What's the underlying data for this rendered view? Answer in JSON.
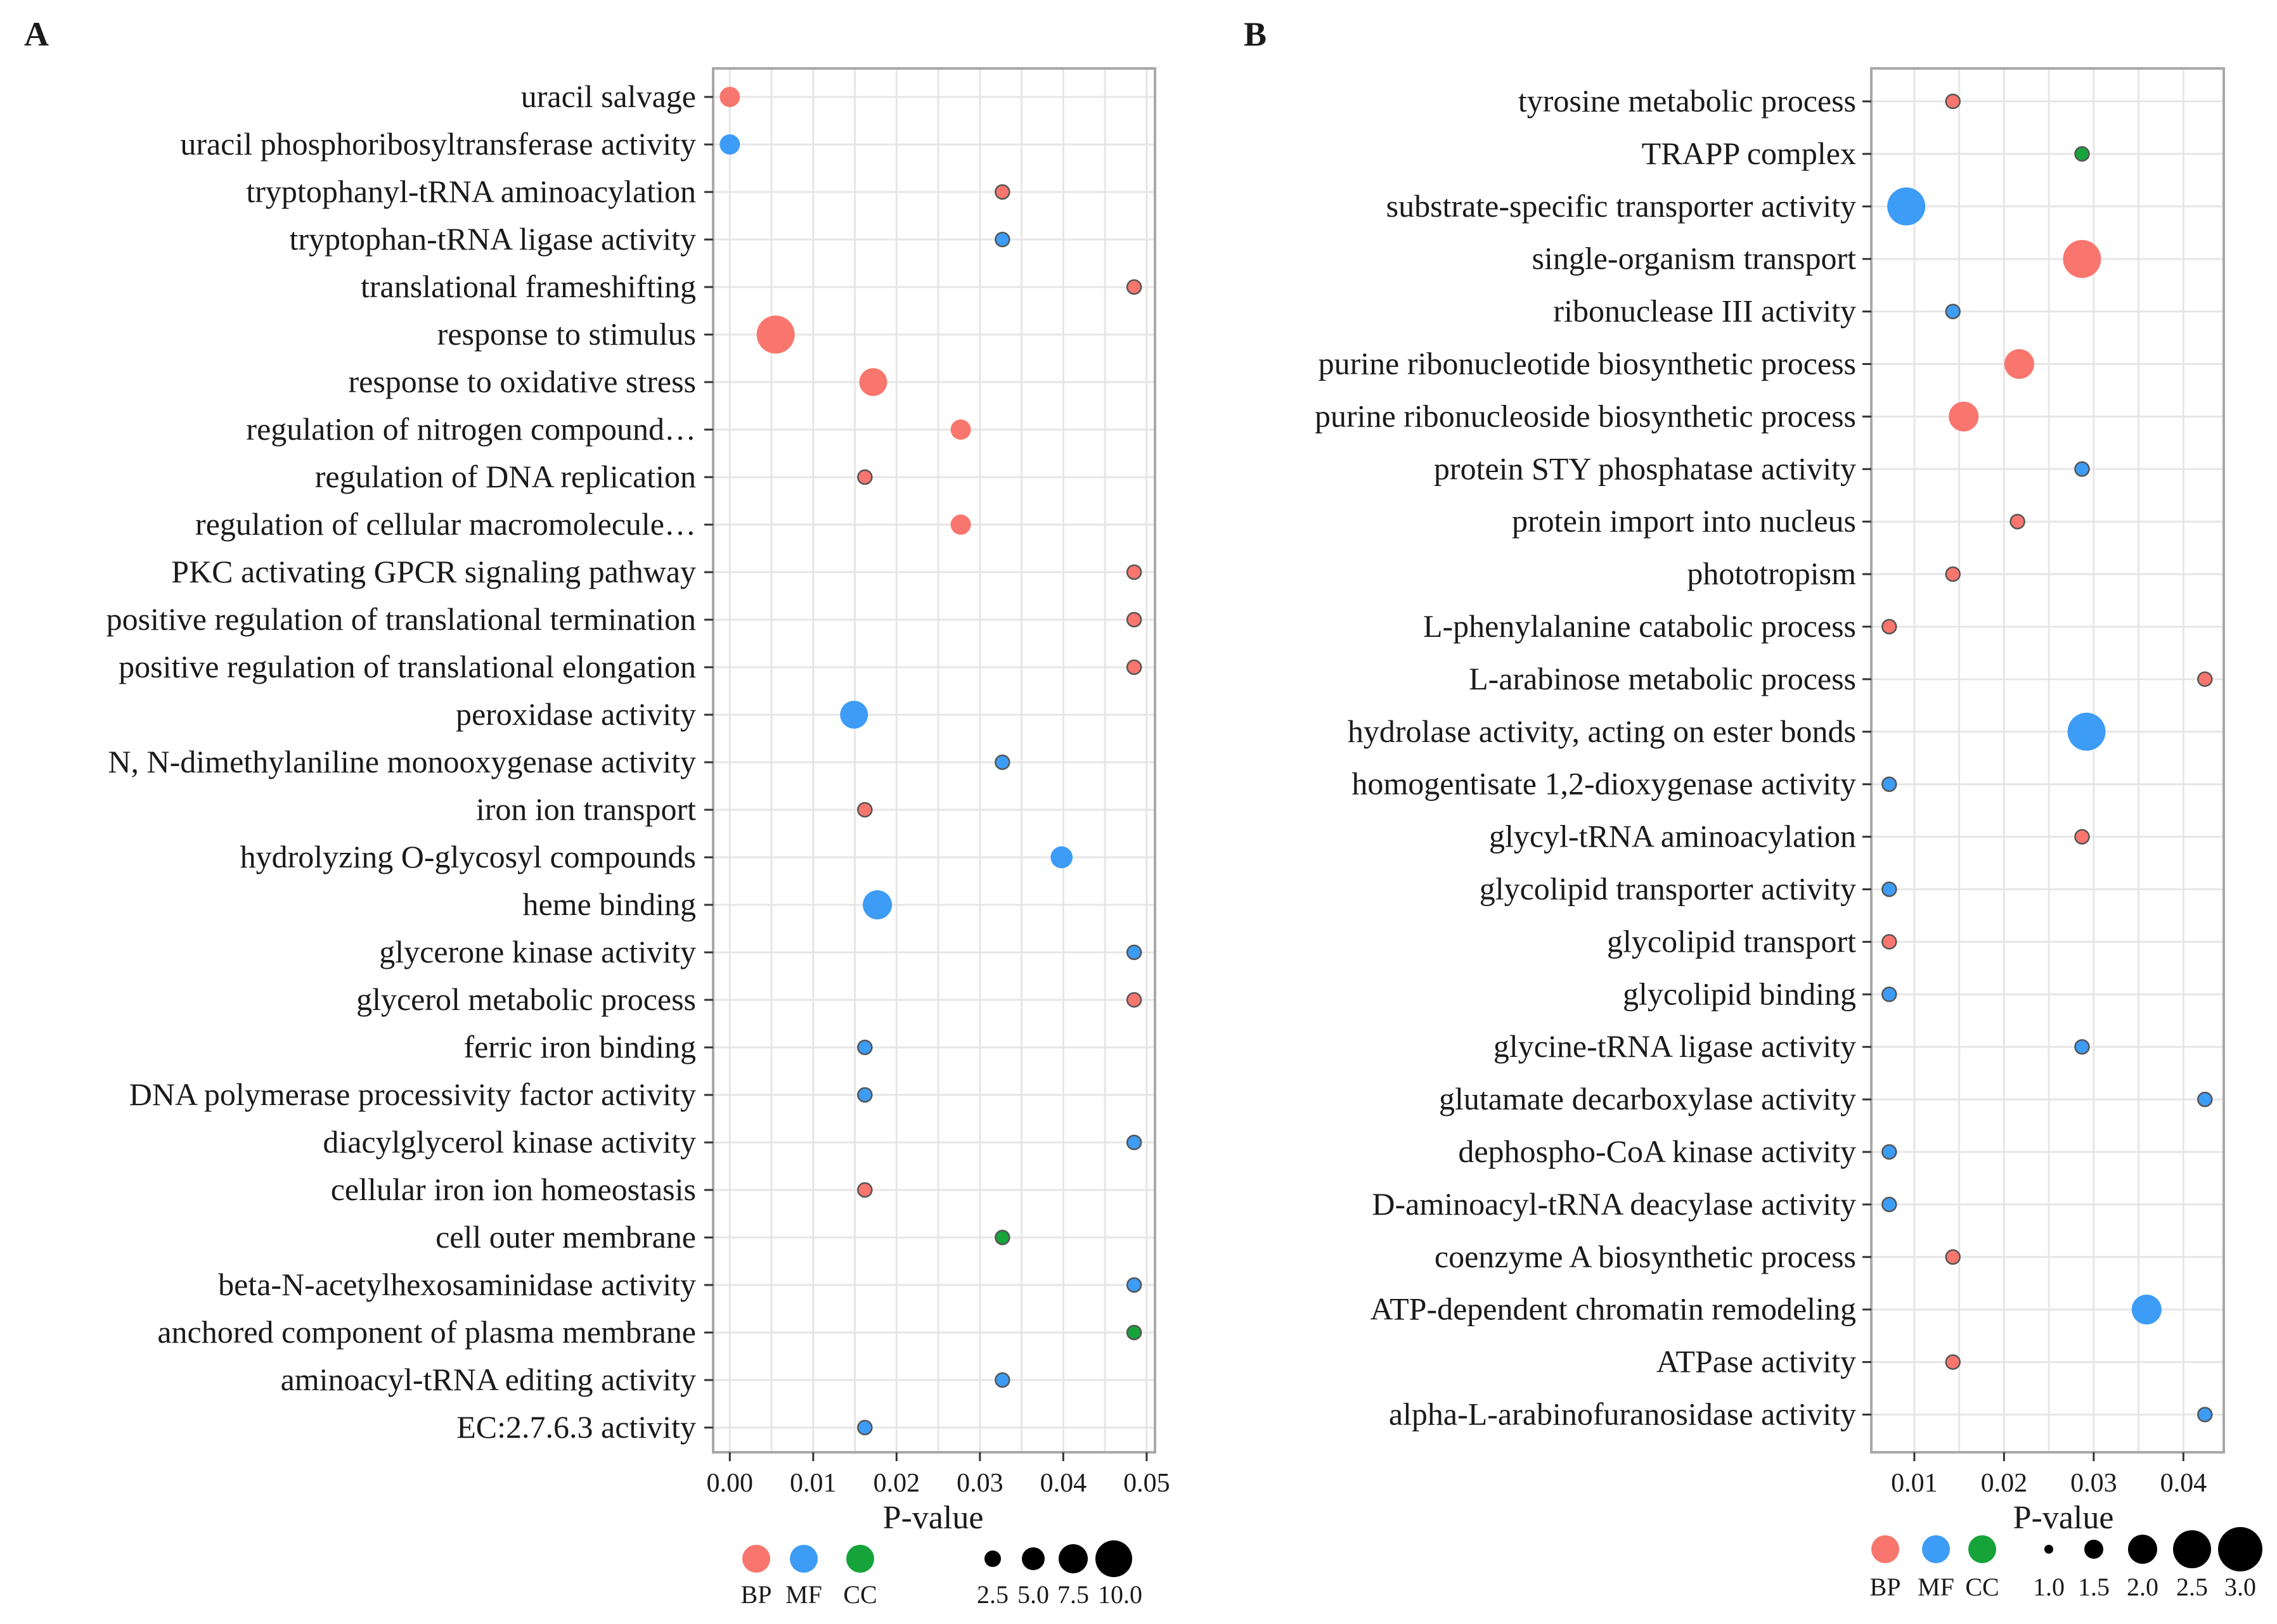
{
  "colors": {
    "BP": "#f8766d",
    "MF": "#3d9cf5",
    "CC": "#16a33a",
    "grid": "#e6e6e6",
    "frame": "#a8a8a8",
    "axis_text": "#333333"
  },
  "chart_data": [
    {
      "panel_label": "A",
      "type": "scatter",
      "xlabel": "P-value",
      "xlim": [
        -0.002,
        0.051
      ],
      "xticks": [
        0,
        0.01,
        0.02,
        0.03,
        0.04,
        0.05
      ],
      "xtick_labels": [
        "0.00",
        "0.01",
        "0.02",
        "0.03",
        "0.04",
        "0.05"
      ],
      "legend_categories": [
        "BP",
        "MF",
        "CC"
      ],
      "size_legend": [
        2.5,
        5.0,
        7.5,
        10.0
      ],
      "size_legend_labels": [
        "2.5",
        "5.0",
        "7.5",
        "10.0"
      ],
      "terms": [
        {
          "label": "uracil salvage",
          "p": 0.0,
          "category": "BP",
          "size": 3
        },
        {
          "label": "uracil phosphoribosyltransferase activity",
          "p": 0.0,
          "category": "MF",
          "size": 3
        },
        {
          "label": "tryptophanyl-tRNA aminoacylation",
          "p": 0.0327,
          "category": "BP",
          "size": 1.5
        },
        {
          "label": "tryptophan-tRNA ligase activity",
          "p": 0.0327,
          "category": "MF",
          "size": 1.5
        },
        {
          "label": "translational frameshifting",
          "p": 0.0485,
          "category": "BP",
          "size": 1.5
        },
        {
          "label": "response to stimulus",
          "p": 0.0055,
          "category": "BP",
          "size": 10
        },
        {
          "label": "response to oxidative stress",
          "p": 0.0172,
          "category": "BP",
          "size": 5.5
        },
        {
          "label": "regulation of nitrogen compound…",
          "p": 0.0277,
          "category": "BP",
          "size": 3
        },
        {
          "label": "regulation of DNA replication",
          "p": 0.0162,
          "category": "BP",
          "size": 1.5
        },
        {
          "label": "regulation of cellular macromolecule…",
          "p": 0.0277,
          "category": "BP",
          "size": 3
        },
        {
          "label": "PKC activating GPCR signaling pathway",
          "p": 0.0485,
          "category": "BP",
          "size": 1.5
        },
        {
          "label": "positive regulation of translational termination",
          "p": 0.0485,
          "category": "BP",
          "size": 1.5
        },
        {
          "label": "positive regulation of translational elongation",
          "p": 0.0485,
          "category": "BP",
          "size": 1.5
        },
        {
          "label": "peroxidase activity",
          "p": 0.0149,
          "category": "MF",
          "size": 5.5
        },
        {
          "label": "N, N-dimethylaniline monooxygenase activity",
          "p": 0.0327,
          "category": "MF",
          "size": 1.5
        },
        {
          "label": "iron ion transport",
          "p": 0.0162,
          "category": "BP",
          "size": 1.5
        },
        {
          "label": "hydrolyzing O-glycosyl compounds",
          "p": 0.0398,
          "category": "MF",
          "size": 3.5
        },
        {
          "label": "heme binding",
          "p": 0.0177,
          "category": "MF",
          "size": 6
        },
        {
          "label": "glycerone kinase activity",
          "p": 0.0485,
          "category": "MF",
          "size": 1.5
        },
        {
          "label": "glycerol metabolic process",
          "p": 0.0485,
          "category": "BP",
          "size": 1.5
        },
        {
          "label": "ferric iron binding",
          "p": 0.0162,
          "category": "MF",
          "size": 1.5
        },
        {
          "label": "DNA polymerase processivity factor activity",
          "p": 0.0162,
          "category": "MF",
          "size": 1.5
        },
        {
          "label": "diacylglycerol kinase activity",
          "p": 0.0485,
          "category": "MF",
          "size": 1.5
        },
        {
          "label": "cellular iron ion homeostasis",
          "p": 0.0162,
          "category": "BP",
          "size": 1.5
        },
        {
          "label": "cell outer membrane",
          "p": 0.0327,
          "category": "CC",
          "size": 1.5
        },
        {
          "label": "beta-N-acetylhexosaminidase activity",
          "p": 0.0485,
          "category": "MF",
          "size": 1.5
        },
        {
          "label": "anchored component of plasma membrane",
          "p": 0.0485,
          "category": "CC",
          "size": 1.5
        },
        {
          "label": "aminoacyl-tRNA editing activity",
          "p": 0.0327,
          "category": "MF",
          "size": 1.5
        },
        {
          "label": "EC:2.7.6.3 activity",
          "p": 0.0162,
          "category": "MF",
          "size": 1.5
        }
      ]
    },
    {
      "panel_label": "B",
      "type": "scatter",
      "xlabel": "P-value",
      "xlim": [
        0.0052,
        0.0445
      ],
      "xticks": [
        0.01,
        0.02,
        0.03,
        0.04
      ],
      "xtick_labels": [
        "0.01",
        "0.02",
        "0.03",
        "0.04"
      ],
      "legend_categories": [
        "BP",
        "MF",
        "CC"
      ],
      "size_legend": [
        1.0,
        1.5,
        2.0,
        2.5,
        3.0
      ],
      "size_legend_labels": [
        "1.0",
        "1.5",
        "2.0",
        "2.5",
        "3.0"
      ],
      "terms": [
        {
          "label": "tyrosine metabolic process",
          "p": 0.0143,
          "category": "BP",
          "size": 1
        },
        {
          "label": "TRAPP complex",
          "p": 0.0287,
          "category": "CC",
          "size": 1
        },
        {
          "label": "substrate-specific transporter activity",
          "p": 0.0091,
          "category": "MF",
          "size": 3
        },
        {
          "label": "single-organism transport",
          "p": 0.0287,
          "category": "BP",
          "size": 3
        },
        {
          "label": "ribonuclease III activity",
          "p": 0.0143,
          "category": "MF",
          "size": 1
        },
        {
          "label": "purine ribonucleotide biosynthetic process",
          "p": 0.0217,
          "category": "BP",
          "size": 2.2
        },
        {
          "label": "purine ribonucleoside biosynthetic process",
          "p": 0.0155,
          "category": "BP",
          "size": 2.2
        },
        {
          "label": "protein STY phosphatase activity",
          "p": 0.0287,
          "category": "MF",
          "size": 1
        },
        {
          "label": "protein import into nucleus",
          "p": 0.0215,
          "category": "BP",
          "size": 1
        },
        {
          "label": "phototropism",
          "p": 0.0143,
          "category": "BP",
          "size": 1
        },
        {
          "label": "L-phenylalanine catabolic process",
          "p": 0.0072,
          "category": "BP",
          "size": 1
        },
        {
          "label": "L-arabinose metabolic process",
          "p": 0.0424,
          "category": "BP",
          "size": 1
        },
        {
          "label": "hydrolase activity, acting on ester bonds",
          "p": 0.0292,
          "category": "MF",
          "size": 3
        },
        {
          "label": "homogentisate 1,2-dioxygenase activity",
          "p": 0.0072,
          "category": "MF",
          "size": 1
        },
        {
          "label": "glycyl-tRNA aminoacylation",
          "p": 0.0287,
          "category": "BP",
          "size": 1
        },
        {
          "label": "glycolipid transporter activity",
          "p": 0.0072,
          "category": "MF",
          "size": 1
        },
        {
          "label": "glycolipid transport",
          "p": 0.0072,
          "category": "BP",
          "size": 1
        },
        {
          "label": "glycolipid binding",
          "p": 0.0072,
          "category": "MF",
          "size": 1
        },
        {
          "label": "glycine-tRNA ligase activity",
          "p": 0.0287,
          "category": "MF",
          "size": 1
        },
        {
          "label": "glutamate decarboxylase activity",
          "p": 0.0424,
          "category": "MF",
          "size": 1
        },
        {
          "label": "dephospho-CoA kinase activity",
          "p": 0.0072,
          "category": "MF",
          "size": 1
        },
        {
          "label": "D-aminoacyl-tRNA deacylase activity",
          "p": 0.0072,
          "category": "MF",
          "size": 1
        },
        {
          "label": "coenzyme A biosynthetic process",
          "p": 0.0143,
          "category": "BP",
          "size": 0.8
        },
        {
          "label": "ATP-dependent chromatin remodeling",
          "p": 0.0359,
          "category": "MF",
          "size": 2.2
        },
        {
          "label": "ATPase activity",
          "p": 0.0143,
          "category": "BP",
          "size": 1
        },
        {
          "label": "alpha-L-arabinofuranosidase activity",
          "p": 0.0424,
          "category": "MF",
          "size": 1
        }
      ]
    }
  ]
}
